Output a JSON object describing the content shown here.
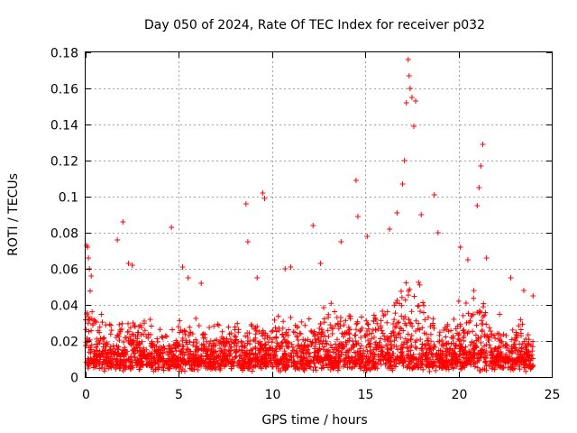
{
  "chart_data": {
    "type": "scatter",
    "title": "Day 050 of 2024, Rate Of TEC Index for receiver p032",
    "xlabel": "GPS time / hours",
    "ylabel": "ROTI / TECUs",
    "xlim": [
      0,
      25
    ],
    "ylim": [
      0,
      0.18
    ],
    "xticks": [
      0,
      5,
      10,
      15,
      20,
      25
    ],
    "xtick_labels": [
      "0",
      "5",
      "10",
      "15",
      "20",
      "25"
    ],
    "yticks": [
      0,
      0.02,
      0.04,
      0.06,
      0.08,
      0.1,
      0.12,
      0.14,
      0.16,
      0.18
    ],
    "ytick_labels": [
      "0",
      "0.02",
      "0.04",
      "0.06",
      "0.08",
      "0.1",
      "0.12",
      "0.14",
      "0.16",
      "0.18"
    ],
    "grid": true,
    "marker": "plus",
    "series": [
      {
        "name": "ROTI",
        "color": "#ff0000",
        "x": [
          0.05,
          0.1,
          0.15,
          0.2,
          0.3,
          1.7,
          2.0,
          2.3,
          2.5,
          4.6,
          5.2,
          5.5,
          6.2,
          8.6,
          8.7,
          9.2,
          9.5,
          9.6,
          10.7,
          11.0,
          12.2,
          12.6,
          13.7,
          14.5,
          14.6,
          15.1,
          16.3,
          16.7,
          17.0,
          17.1,
          17.2,
          17.3,
          17.35,
          17.4,
          17.5,
          17.6,
          17.7,
          18.0,
          18.7,
          18.9,
          20.1,
          20.5,
          21.0,
          21.1,
          21.2,
          21.3,
          21.5,
          22.8,
          23.5,
          24.0
        ],
        "y": [
          0.073,
          0.072,
          0.066,
          0.06,
          0.056,
          0.076,
          0.086,
          0.063,
          0.062,
          0.083,
          0.061,
          0.055,
          0.052,
          0.096,
          0.075,
          0.055,
          0.102,
          0.099,
          0.06,
          0.061,
          0.084,
          0.063,
          0.075,
          0.109,
          0.089,
          0.078,
          0.082,
          0.091,
          0.107,
          0.12,
          0.152,
          0.176,
          0.167,
          0.16,
          0.155,
          0.139,
          0.153,
          0.09,
          0.101,
          0.08,
          0.072,
          0.065,
          0.095,
          0.105,
          0.117,
          0.129,
          0.066,
          0.055,
          0.048,
          0.045
        ]
      }
    ],
    "background_band": {
      "x_start": 0,
      "x_end": 24,
      "min": 0.003,
      "max": 0.05,
      "note": "dense cloud of ROTI samples, mostly 0.005-0.04 with enhanced activity 16.5-18 h and 20-21.5 h"
    }
  }
}
